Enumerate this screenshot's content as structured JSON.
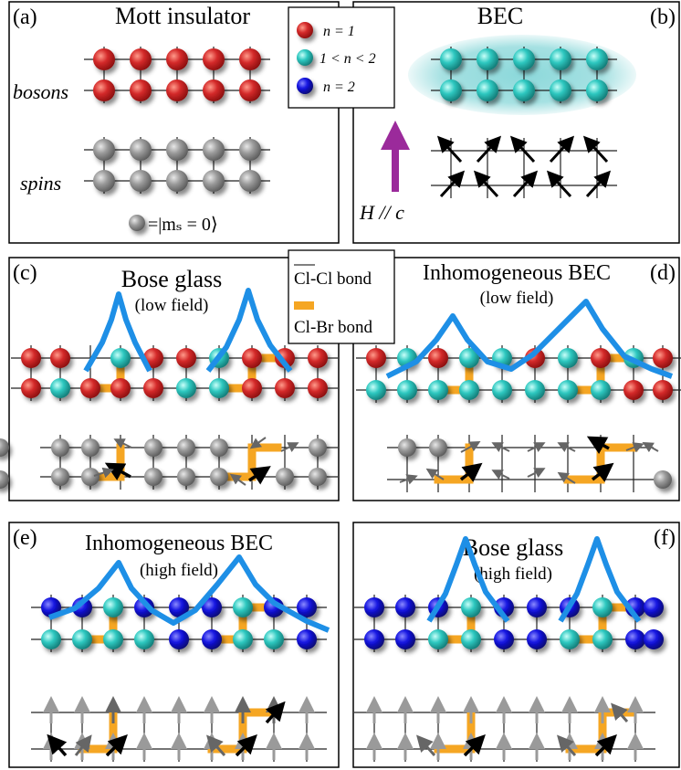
{
  "panels": {
    "a": {
      "letter": "(a)",
      "title": "Mott insulator",
      "row_label_bosons": "bosons",
      "row_label_spins": "spins",
      "ms_label": "=|mₛ = 0⟩"
    },
    "b": {
      "letter": "(b)",
      "title": "BEC",
      "field_label": "H  //  c"
    },
    "c": {
      "letter": "(c)",
      "title": "Bose glass",
      "subtitle": "(low field)"
    },
    "d": {
      "letter": "(d)",
      "title": "Inhomogeneous BEC",
      "subtitle": "(low field)"
    },
    "e": {
      "letter": "(e)",
      "title": "Inhomogeneous BEC",
      "subtitle": "(high field)"
    },
    "f": {
      "letter": "(f)",
      "title": "Bose glass",
      "subtitle": "(high field)"
    }
  },
  "legend_n": {
    "n1": "n = 1",
    "n_mid": "1 < n < 2",
    "n2": "n = 2"
  },
  "legend_bond": {
    "clcl": "Cl-Cl bond",
    "clbr": "Cl-Br bond"
  },
  "colors": {
    "n1": "#d42a2a",
    "n_mid": "#2ec8c0",
    "n2": "#1414e0",
    "zero": "#8a8a8a",
    "bond": "#f5a623",
    "peak": "#1e8fe6",
    "field_arrow": "#9b2a9b",
    "bec_cloud": "#7fd4d6"
  }
}
